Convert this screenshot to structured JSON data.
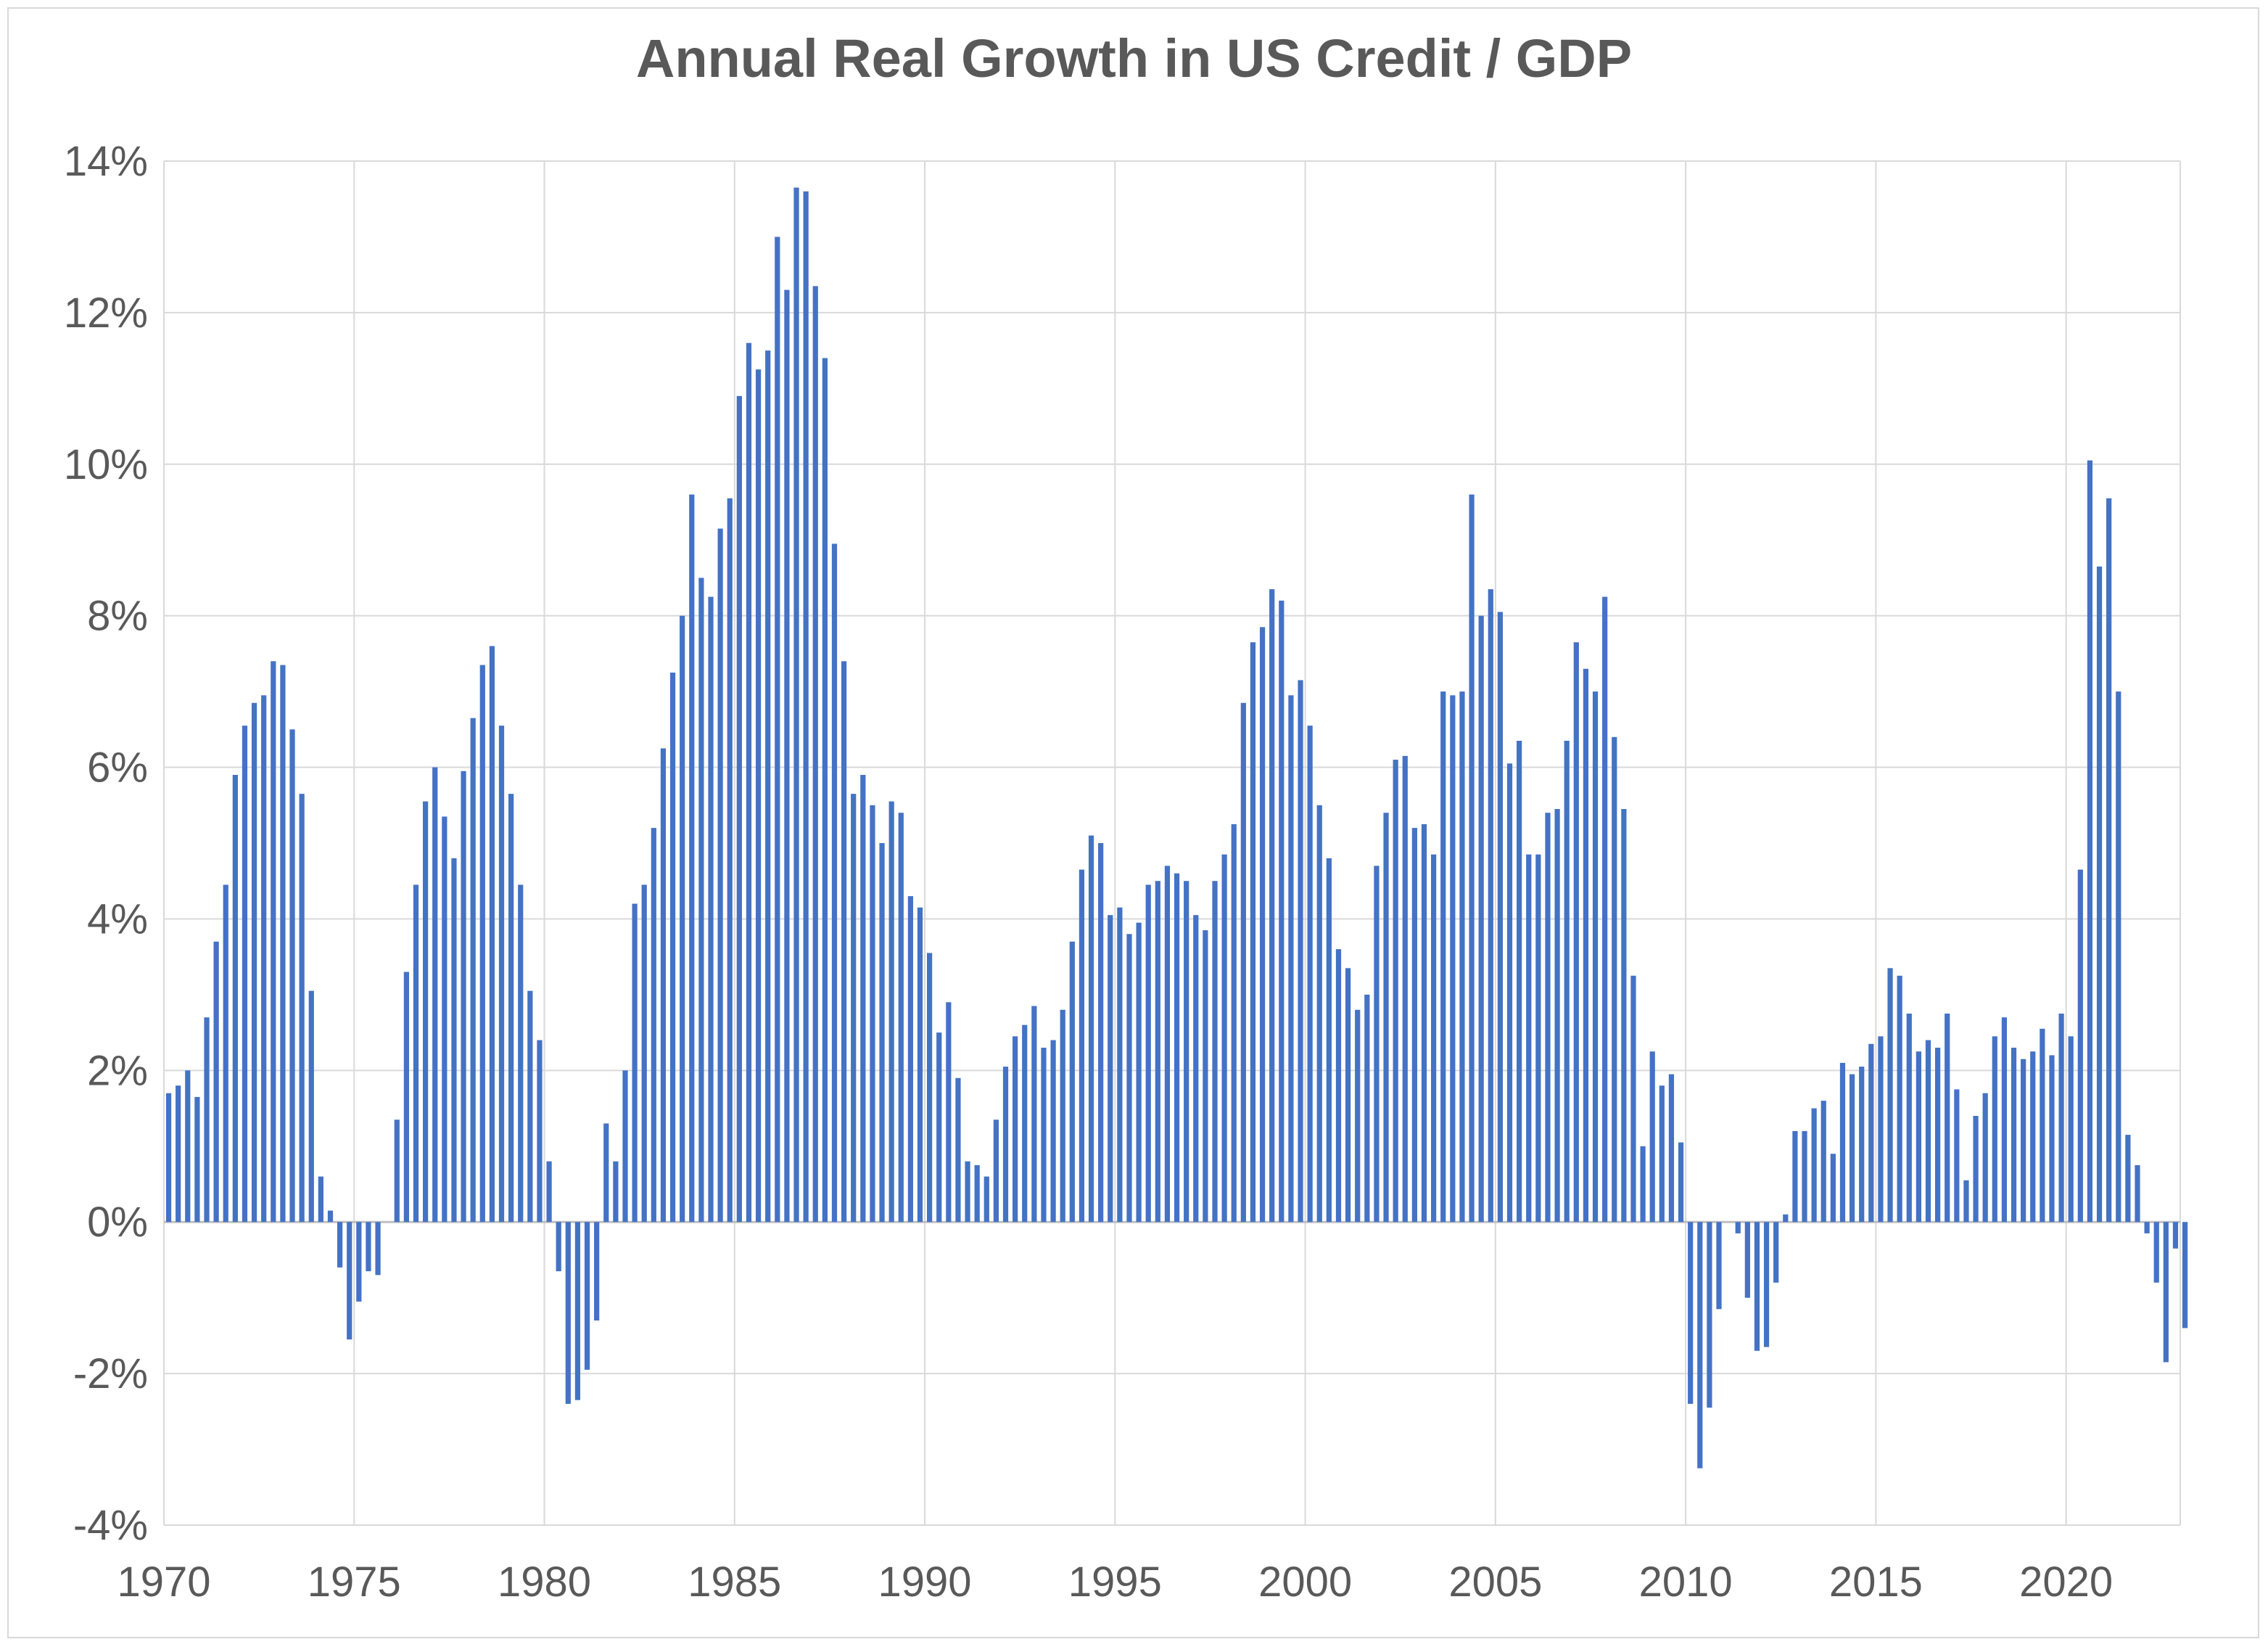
{
  "chart_data": {
    "type": "bar",
    "title": "Annual Real Growth in US Credit / GDP",
    "xlabel": "",
    "ylabel": "",
    "x_range": [
      1970,
      2023
    ],
    "ylim": [
      -4,
      14
    ],
    "y_ticks": [
      -4,
      -2,
      0,
      2,
      4,
      6,
      8,
      10,
      12,
      14
    ],
    "y_tick_labels": [
      "-4%",
      "-2%",
      "0%",
      "2%",
      "4%",
      "6%",
      "8%",
      "10%",
      "12%",
      "14%"
    ],
    "x_ticks": [
      1970,
      1975,
      1980,
      1985,
      1990,
      1995,
      2000,
      2005,
      2010,
      2015,
      2020
    ],
    "x_tick_labels": [
      "1970",
      "1975",
      "1980",
      "1985",
      "1990",
      "1995",
      "2000",
      "2005",
      "2010",
      "2015",
      "2020"
    ],
    "grid": true,
    "bar_color": "#4472c4",
    "frequency": "quarterly",
    "start": 1970.0,
    "step": 0.25,
    "values": [
      1.7,
      1.8,
      2.0,
      1.65,
      2.7,
      3.7,
      4.45,
      5.9,
      6.55,
      6.85,
      6.95,
      7.4,
      7.35,
      6.5,
      5.65,
      3.05,
      0.6,
      0.15,
      -0.6,
      -1.55,
      -1.05,
      -0.65,
      -0.7,
      0.0,
      1.35,
      3.3,
      4.45,
      5.55,
      6.0,
      5.35,
      4.8,
      5.95,
      6.65,
      7.35,
      7.6,
      6.55,
      5.65,
      4.45,
      3.05,
      2.4,
      0.8,
      -0.65,
      -2.4,
      -2.35,
      -1.95,
      -1.3,
      1.3,
      0.8,
      2.0,
      4.2,
      4.45,
      5.2,
      6.25,
      7.25,
      8.0,
      9.6,
      8.5,
      8.25,
      9.15,
      9.55,
      10.9,
      11.6,
      11.25,
      11.5,
      13.0,
      12.3,
      13.65,
      13.6,
      12.35,
      11.4,
      8.95,
      7.4,
      5.65,
      5.9,
      5.5,
      5.0,
      5.55,
      5.4,
      4.3,
      4.15,
      3.55,
      2.5,
      2.9,
      1.9,
      0.8,
      0.75,
      0.6,
      1.35,
      2.05,
      2.45,
      2.6,
      2.85,
      2.3,
      2.4,
      2.8,
      3.7,
      4.65,
      5.1,
      5.0,
      4.05,
      4.15,
      3.8,
      3.95,
      4.45,
      4.5,
      4.7,
      4.6,
      4.5,
      4.05,
      3.85,
      4.5,
      4.85,
      5.25,
      6.85,
      7.65,
      7.85,
      8.35,
      8.2,
      6.95,
      7.15,
      6.55,
      5.5,
      4.8,
      3.6,
      3.35,
      2.8,
      3.0,
      4.7,
      5.4,
      6.1,
      6.15,
      5.2,
      5.25,
      4.85,
      7.0,
      6.95,
      7.0,
      9.6,
      8.0,
      8.35,
      8.05,
      6.05,
      6.35,
      4.85,
      4.85,
      5.4,
      5.45,
      6.35,
      7.65,
      7.3,
      7.0,
      8.25,
      6.4,
      5.45,
      3.25,
      1.0,
      2.25,
      1.8,
      1.95,
      1.05,
      -2.4,
      -3.25,
      -2.45,
      -1.15,
      0.0,
      -0.15,
      -1.0,
      -1.7,
      -1.65,
      -0.8,
      0.1,
      1.2,
      1.2,
      1.5,
      1.6,
      0.9,
      2.1,
      1.95,
      2.05,
      2.35,
      2.45,
      3.35,
      3.25,
      2.75,
      2.25,
      2.4,
      2.3,
      2.75,
      1.75,
      0.55,
      1.4,
      1.7,
      2.45,
      2.7,
      2.3,
      2.15,
      2.25,
      2.55,
      2.2,
      2.75,
      2.45,
      4.65,
      10.05,
      8.65,
      9.55,
      7.0,
      1.15,
      0.75,
      -0.15,
      -0.8,
      -1.85,
      -0.35,
      -1.4
    ]
  }
}
